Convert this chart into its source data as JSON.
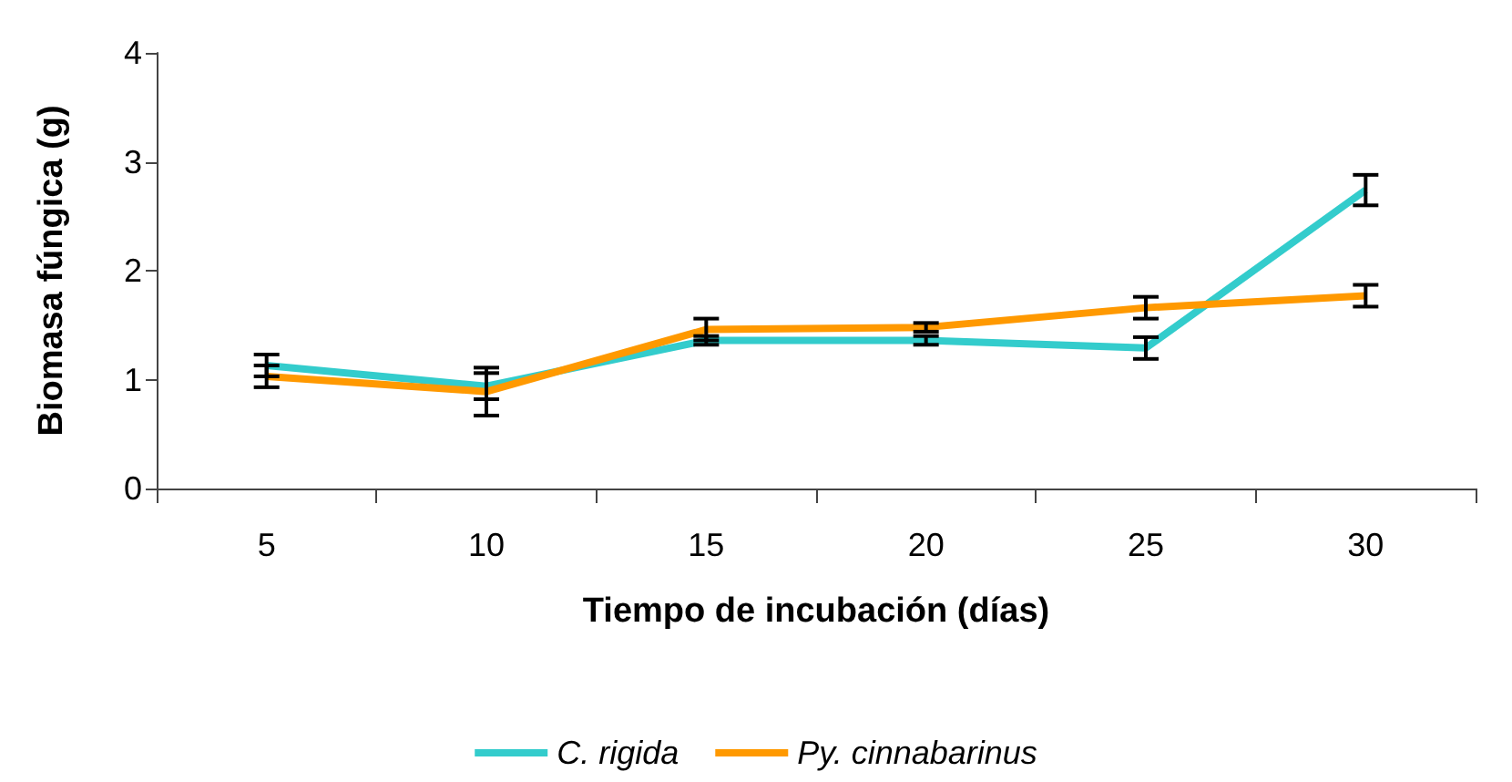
{
  "chart_data": {
    "type": "line",
    "xlabel": "Tiempo de incubación (días)",
    "ylabel": "Biomasa fúngica (g)",
    "categories": [
      "5",
      "10",
      "15",
      "20",
      "25",
      "30"
    ],
    "series": [
      {
        "name": "C. rigida",
        "color": "#33cccc",
        "values": [
          1.13,
          0.94,
          1.36,
          1.36,
          1.29,
          2.74
        ],
        "errors": [
          0.1,
          0.12,
          0.04,
          0.04,
          0.1,
          0.14
        ]
      },
      {
        "name": "Py. cinnabarinus",
        "color": "#ff9900",
        "values": [
          1.03,
          0.89,
          1.46,
          1.48,
          1.66,
          1.77
        ],
        "errors": [
          0.1,
          0.22,
          0.1,
          0.04,
          0.1,
          0.1
        ]
      }
    ],
    "ylim": [
      0,
      4
    ],
    "yticks": [
      0,
      1,
      2,
      3,
      4
    ],
    "grid": false,
    "legend": "bottom",
    "marker": "none",
    "line_style": "solid"
  }
}
